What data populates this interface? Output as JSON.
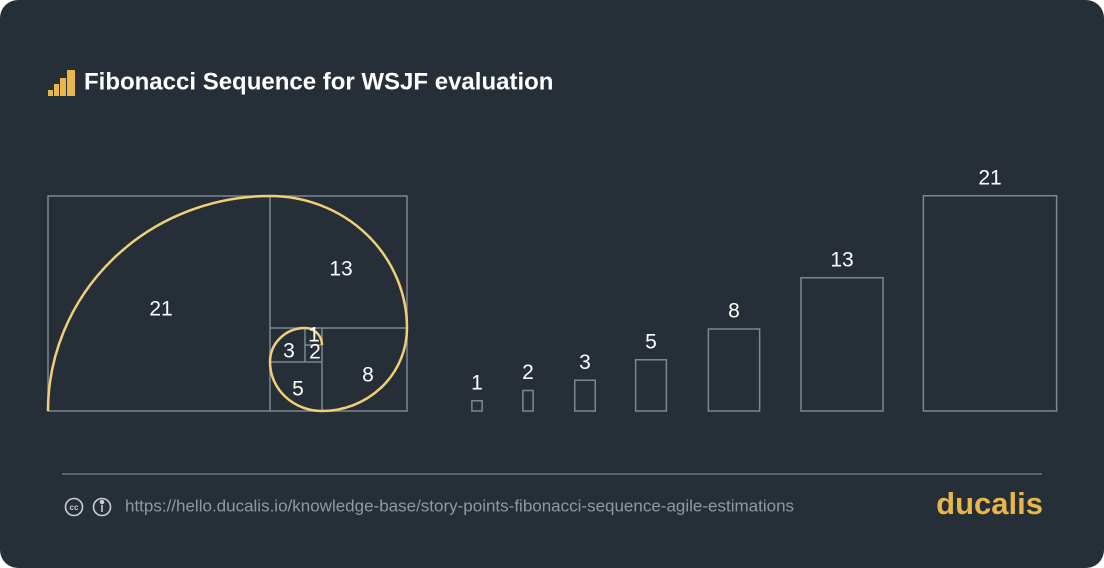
{
  "header": {
    "title": "Fibonacci Sequence for WSJF evaluation"
  },
  "spiral": {
    "labels": [
      21,
      13,
      8,
      5,
      3,
      2,
      1
    ]
  },
  "bars": {
    "values": [
      1,
      2,
      3,
      5,
      8,
      13,
      21
    ]
  },
  "footer": {
    "url": "https://hello.ducalis.io/knowledge-base/story-points-fibonacci-sequence-agile-estimations",
    "brand": "ducalis"
  }
}
